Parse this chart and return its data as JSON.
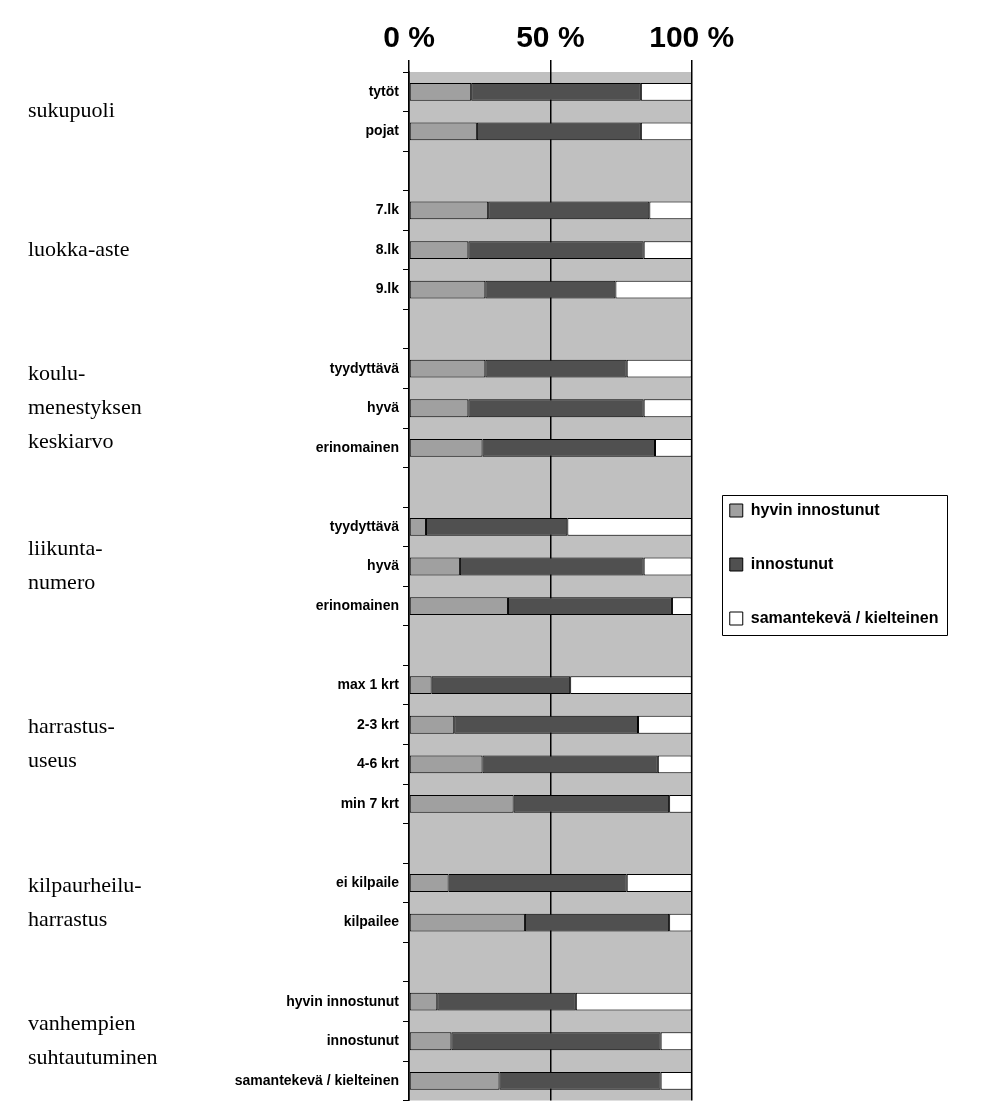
{
  "chart_data": {
    "type": "bar",
    "orientation": "horizontal",
    "stacked": true,
    "categories": [
      "tytöt",
      "pojat",
      null,
      "7.lk",
      "8.lk",
      "9.lk",
      null,
      "tyydyttävä",
      "hyvä",
      "erinomainen",
      null,
      "tyydyttävä",
      "hyvä",
      "erinomainen",
      null,
      "max 1 krt",
      "2-3 krt",
      "4-6 krt",
      "min 7 krt",
      null,
      "ei kilpaile",
      "kilpailee",
      null,
      "hyvin innostunut",
      "innostunut",
      "samantekevä / kielteinen"
    ],
    "series": [
      {
        "name": "hyvin innostunut",
        "color": "#a0a0a0",
        "values": [
          22,
          24,
          null,
          28,
          21,
          27,
          null,
          27,
          21,
          26,
          null,
          6,
          18,
          35,
          null,
          8,
          16,
          26,
          37,
          null,
          14,
          41,
          null,
          10,
          15,
          32
        ]
      },
      {
        "name": "innostunut",
        "color": "#505050",
        "values": [
          60,
          58,
          null,
          57,
          62,
          46,
          null,
          50,
          62,
          61,
          null,
          50,
          65,
          58,
          null,
          49,
          65,
          62,
          55,
          null,
          63,
          51,
          null,
          49,
          74,
          57
        ]
      },
      {
        "name": "samantekevä / kielteinen",
        "color": "#ffffff",
        "values": [
          18,
          18,
          null,
          15,
          17,
          27,
          null,
          23,
          17,
          13,
          null,
          44,
          17,
          7,
          null,
          43,
          19,
          12,
          8,
          null,
          23,
          8,
          null,
          41,
          11,
          11
        ]
      }
    ],
    "xlim": [
      0,
      100
    ],
    "xticks": [
      {
        "value": 0,
        "label": "0 %"
      },
      {
        "value": 50,
        "label": "50 %"
      },
      {
        "value": 100,
        "label": "100 %"
      }
    ],
    "grid": "x",
    "legend": "right",
    "annotations": [
      "sukupuoli",
      "luokka-aste",
      "koulu-\nmenestyksen\nkeskiarvo",
      "liikunta-\nnumero",
      "harrastus-\nuseus",
      "kilpaurheilu-\nharrastus",
      "vanhempien\nsuhtautuminen"
    ]
  }
}
